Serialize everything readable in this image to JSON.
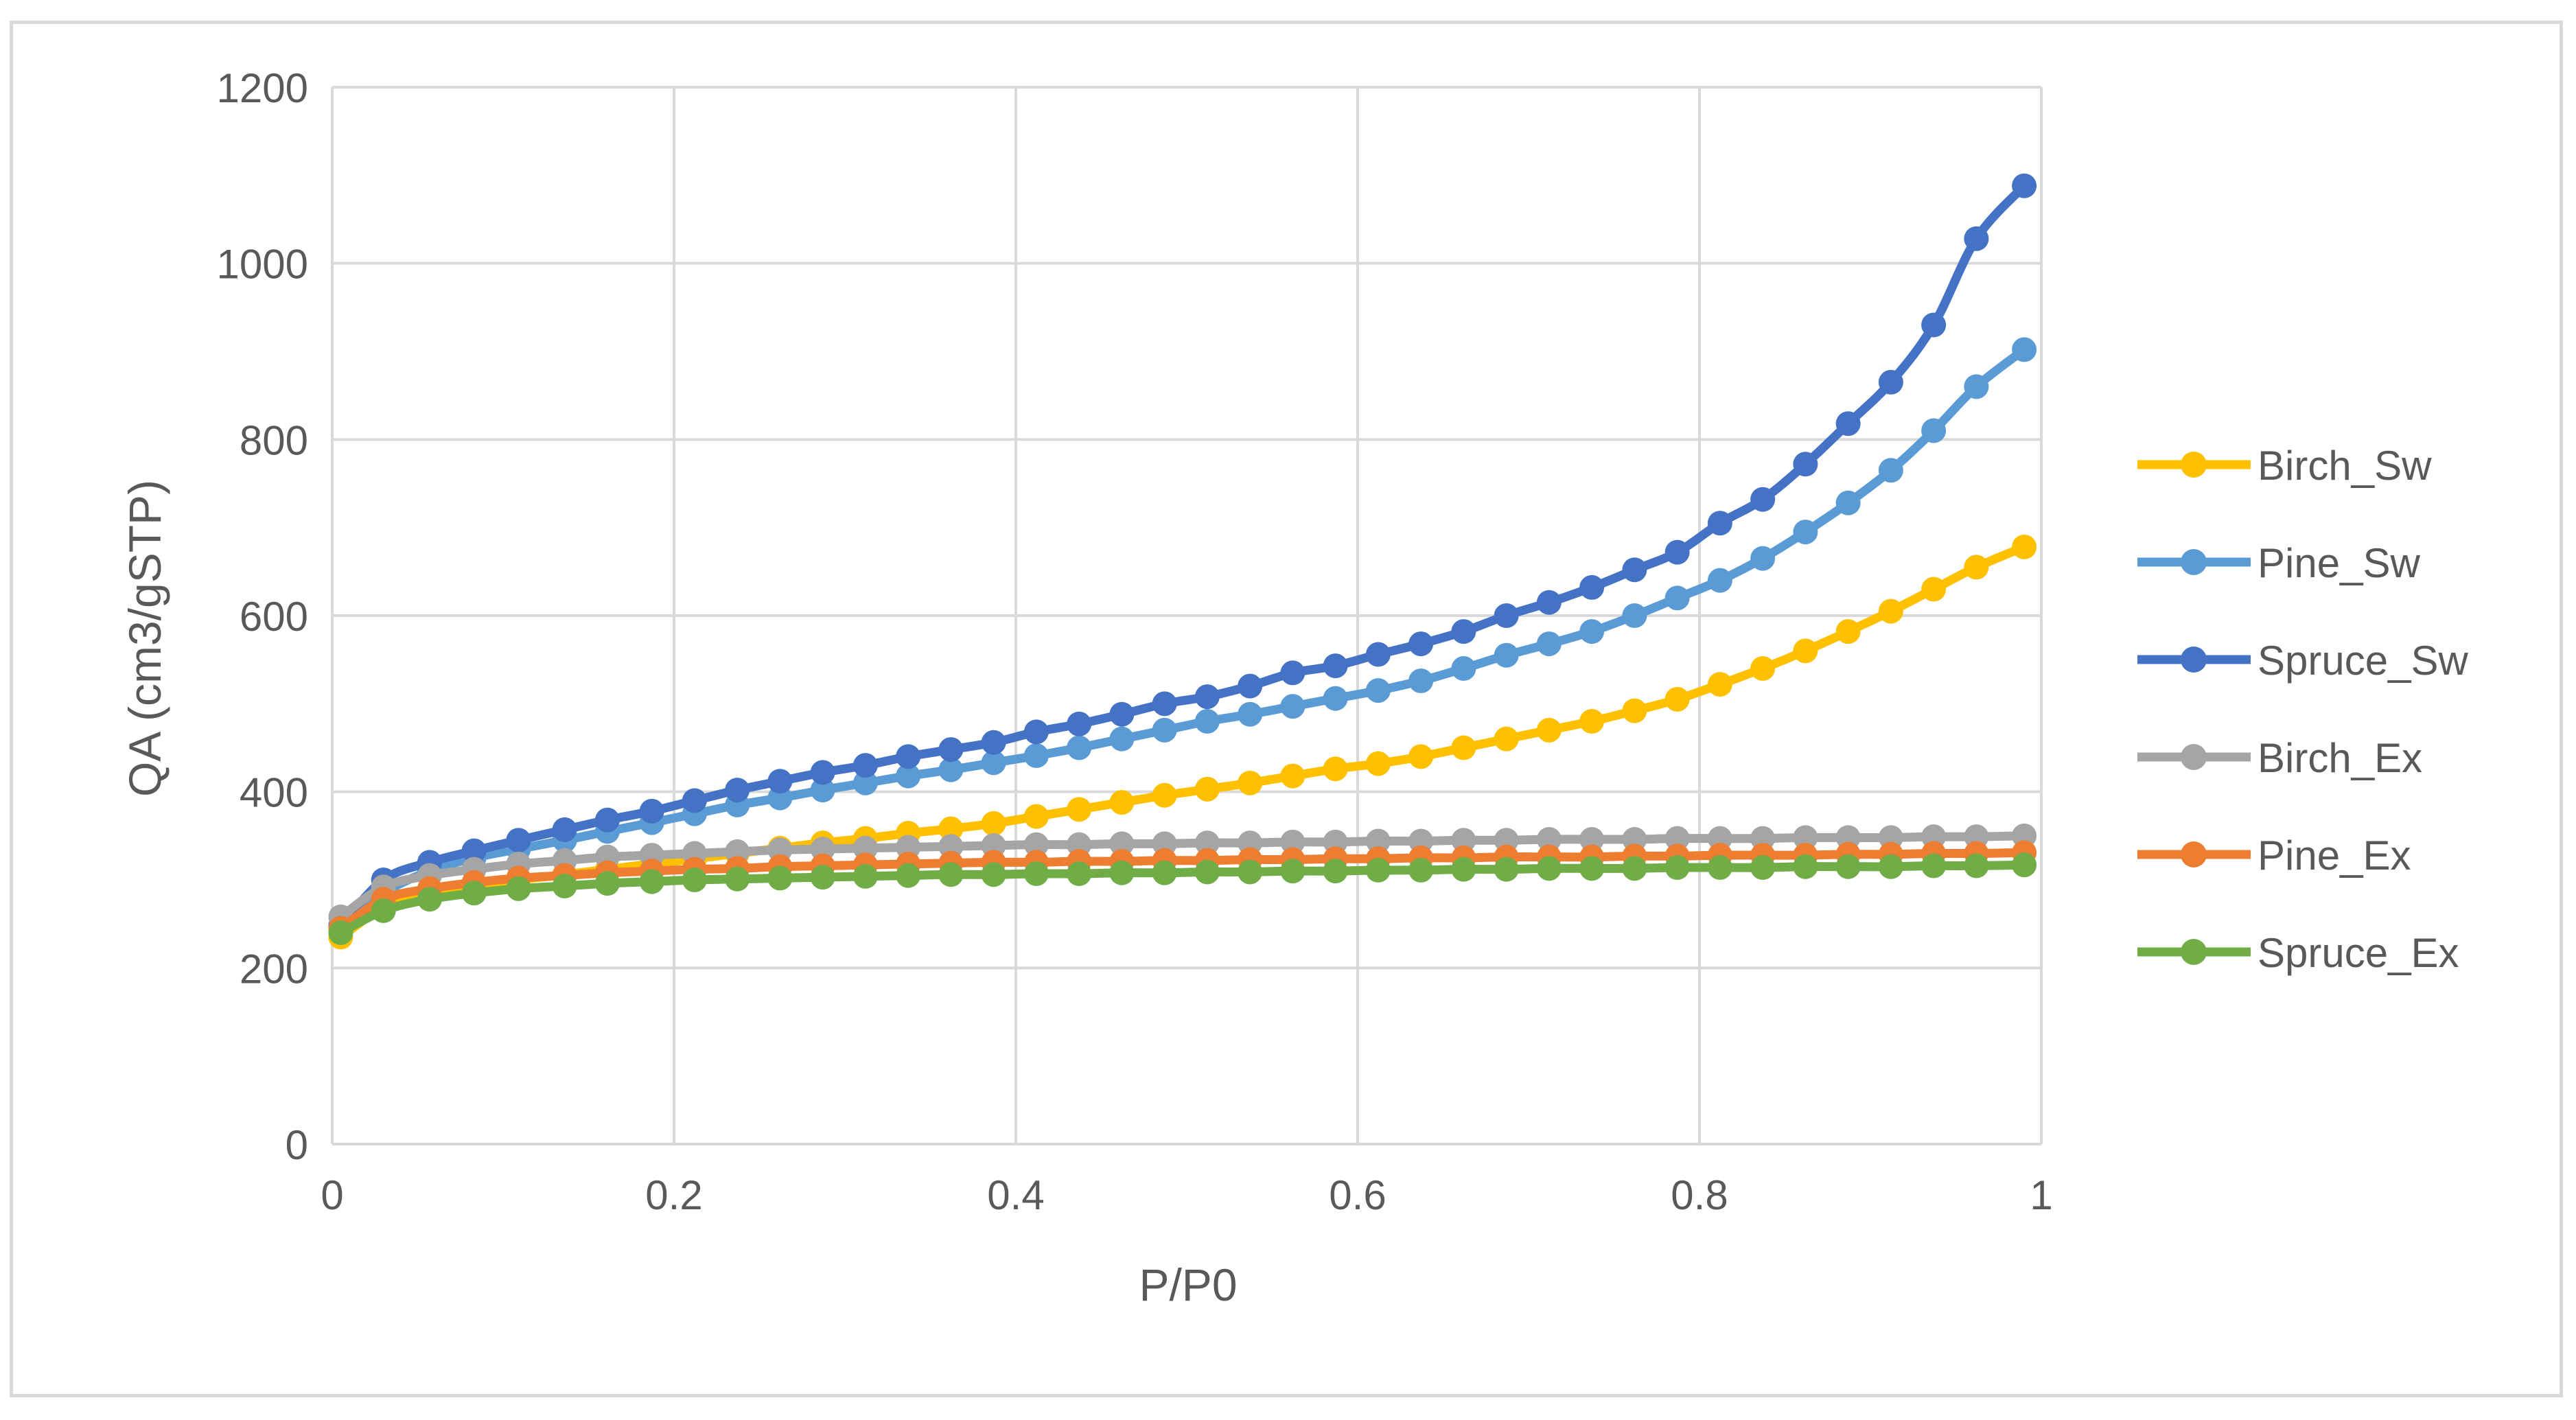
{
  "chart_data": {
    "type": "line",
    "title": "",
    "xlabel": "P/P0",
    "ylabel": "QA (cm3/gSTP)",
    "xlim": [
      0,
      1
    ],
    "ylim": [
      0,
      1200
    ],
    "x_ticks": [
      "0",
      "0.2",
      "0.4",
      "0.6",
      "0.8",
      "1"
    ],
    "y_ticks": [
      "0",
      "200",
      "400",
      "600",
      "800",
      "1000",
      "1200"
    ],
    "grid": true,
    "legend_position": "right",
    "series": [
      {
        "name": "Birch_Sw",
        "color": "#FFC000",
        "x": [
          0.005,
          0.03,
          0.057,
          0.083,
          0.109,
          0.136,
          0.161,
          0.187,
          0.212,
          0.237,
          0.262,
          0.287,
          0.312,
          0.337,
          0.362,
          0.387,
          0.412,
          0.437,
          0.462,
          0.487,
          0.512,
          0.537,
          0.562,
          0.587,
          0.612,
          0.637,
          0.662,
          0.687,
          0.712,
          0.737,
          0.762,
          0.787,
          0.812,
          0.837,
          0.862,
          0.887,
          0.912,
          0.937,
          0.962,
          0.99
        ],
        "y": [
          235,
          268,
          282,
          292,
          300,
          306,
          312,
          318,
          324,
          330,
          336,
          342,
          347,
          353,
          358,
          364,
          372,
          380,
          388,
          396,
          403,
          410,
          418,
          426,
          432,
          440,
          450,
          460,
          470,
          480,
          492,
          505,
          522,
          540,
          560,
          582,
          605,
          630,
          655,
          678
        ]
      },
      {
        "name": "Pine_Sw",
        "color": "#5B9BD5",
        "x": [
          0.005,
          0.03,
          0.057,
          0.083,
          0.109,
          0.136,
          0.161,
          0.187,
          0.212,
          0.237,
          0.262,
          0.287,
          0.312,
          0.337,
          0.362,
          0.387,
          0.412,
          0.437,
          0.462,
          0.487,
          0.512,
          0.537,
          0.562,
          0.587,
          0.612,
          0.637,
          0.662,
          0.687,
          0.712,
          0.737,
          0.762,
          0.787,
          0.812,
          0.837,
          0.862,
          0.887,
          0.912,
          0.937,
          0.962,
          0.99
        ],
        "y": [
          245,
          285,
          310,
          325,
          335,
          345,
          355,
          365,
          375,
          385,
          393,
          402,
          410,
          418,
          425,
          433,
          441,
          450,
          460,
          470,
          480,
          488,
          497,
          506,
          515,
          526,
          540,
          555,
          568,
          582,
          600,
          620,
          640,
          665,
          695,
          728,
          765,
          810,
          860,
          902
        ]
      },
      {
        "name": "Spruce_Sw",
        "color": "#4472C4",
        "x": [
          0.005,
          0.03,
          0.057,
          0.083,
          0.109,
          0.136,
          0.161,
          0.187,
          0.212,
          0.237,
          0.262,
          0.287,
          0.312,
          0.337,
          0.362,
          0.387,
          0.412,
          0.437,
          0.462,
          0.487,
          0.512,
          0.537,
          0.562,
          0.587,
          0.612,
          0.637,
          0.662,
          0.687,
          0.712,
          0.737,
          0.762,
          0.787,
          0.812,
          0.837,
          0.862,
          0.887,
          0.912,
          0.937,
          0.962,
          0.99
        ],
        "y": [
          248,
          300,
          320,
          333,
          345,
          357,
          368,
          378,
          390,
          402,
          412,
          422,
          430,
          440,
          448,
          456,
          468,
          477,
          488,
          500,
          508,
          520,
          535,
          543,
          556,
          568,
          582,
          600,
          615,
          632,
          652,
          672,
          705,
          732,
          772,
          818,
          865,
          930,
          1028,
          1088
        ]
      },
      {
        "name": "Birch_Ex",
        "color": "#A5A5A5",
        "x": [
          0.005,
          0.03,
          0.057,
          0.083,
          0.109,
          0.136,
          0.161,
          0.187,
          0.212,
          0.237,
          0.262,
          0.287,
          0.312,
          0.337,
          0.362,
          0.387,
          0.412,
          0.437,
          0.462,
          0.487,
          0.512,
          0.537,
          0.562,
          0.587,
          0.612,
          0.637,
          0.662,
          0.687,
          0.712,
          0.737,
          0.762,
          0.787,
          0.812,
          0.837,
          0.862,
          0.887,
          0.912,
          0.937,
          0.962,
          0.99
        ],
        "y": [
          258,
          292,
          305,
          312,
          318,
          322,
          326,
          328,
          330,
          332,
          334,
          335,
          336,
          337,
          338,
          339,
          340,
          340,
          341,
          341,
          342,
          342,
          343,
          343,
          344,
          344,
          345,
          345,
          346,
          346,
          346,
          347,
          347,
          347,
          348,
          348,
          348,
          349,
          349,
          350
        ]
      },
      {
        "name": "Pine_Ex",
        "color": "#ED7D31",
        "x": [
          0.005,
          0.03,
          0.057,
          0.083,
          0.109,
          0.136,
          0.161,
          0.187,
          0.212,
          0.237,
          0.262,
          0.287,
          0.312,
          0.337,
          0.362,
          0.387,
          0.412,
          0.437,
          0.462,
          0.487,
          0.512,
          0.537,
          0.562,
          0.587,
          0.612,
          0.637,
          0.662,
          0.687,
          0.712,
          0.737,
          0.762,
          0.787,
          0.812,
          0.837,
          0.862,
          0.887,
          0.912,
          0.937,
          0.962,
          0.99
        ],
        "y": [
          245,
          278,
          290,
          297,
          302,
          305,
          308,
          310,
          312,
          313,
          315,
          316,
          317,
          318,
          319,
          320,
          320,
          321,
          321,
          322,
          322,
          323,
          323,
          324,
          324,
          325,
          325,
          326,
          326,
          326,
          327,
          327,
          328,
          328,
          328,
          329,
          329,
          330,
          330,
          331
        ]
      },
      {
        "name": "Spruce_Ex",
        "color": "#70AD47",
        "x": [
          0.005,
          0.03,
          0.057,
          0.083,
          0.109,
          0.136,
          0.161,
          0.187,
          0.212,
          0.237,
          0.262,
          0.287,
          0.312,
          0.337,
          0.362,
          0.387,
          0.412,
          0.437,
          0.462,
          0.487,
          0.512,
          0.537,
          0.562,
          0.587,
          0.612,
          0.637,
          0.662,
          0.687,
          0.712,
          0.737,
          0.762,
          0.787,
          0.812,
          0.837,
          0.862,
          0.887,
          0.912,
          0.937,
          0.962,
          0.99
        ],
        "y": [
          240,
          265,
          278,
          285,
          290,
          293,
          296,
          298,
          300,
          301,
          302,
          303,
          304,
          305,
          306,
          306,
          307,
          307,
          308,
          308,
          309,
          309,
          310,
          310,
          311,
          311,
          312,
          312,
          313,
          313,
          313,
          314,
          314,
          314,
          315,
          315,
          315,
          316,
          316,
          317
        ]
      }
    ]
  }
}
